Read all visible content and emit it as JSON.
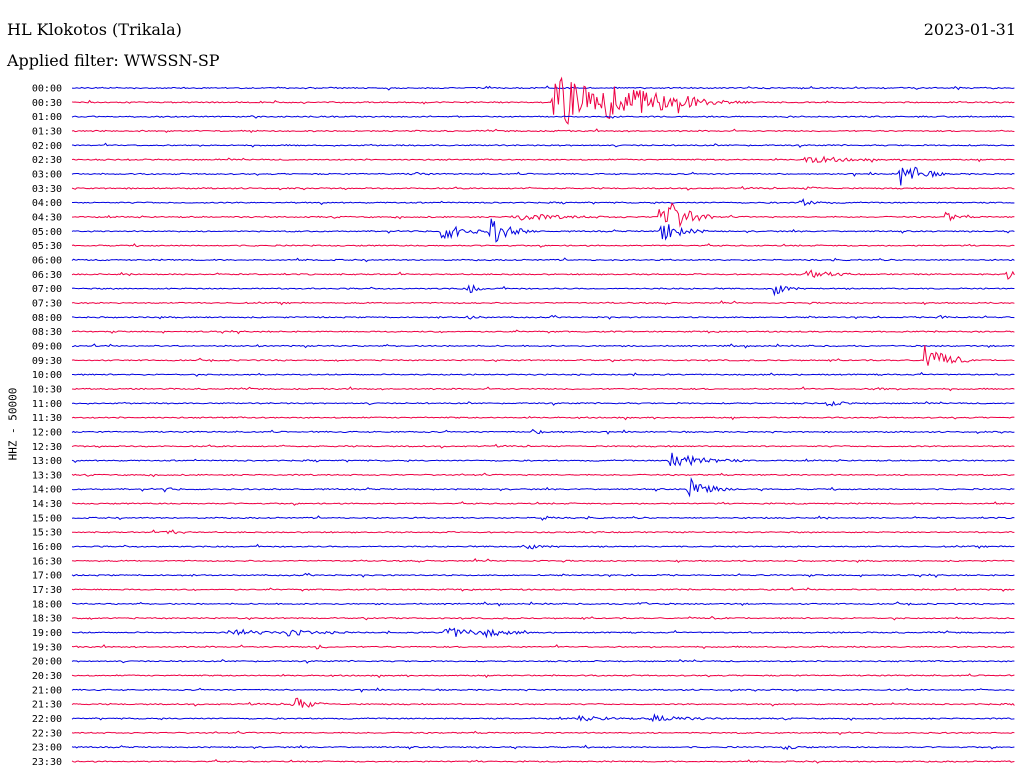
{
  "header": {
    "station": "HL Klokotos (Trikala)",
    "date": "2023-01-31",
    "filter": "Applied filter: WWSSN-SP"
  },
  "chart_data": {
    "type": "line",
    "title": "HL Klokotos (Trikala)",
    "subtitle": "Applied filter: WWSSN-SP",
    "date": "2023-01-31",
    "ylabel": "HHZ - 50000",
    "xlabel": "",
    "colors": {
      "even_trace": "#0000e0",
      "odd_trace": "#ee0044"
    },
    "trace_labels": [
      "00:00",
      "00:30",
      "01:00",
      "01:30",
      "02:00",
      "02:30",
      "03:00",
      "03:30",
      "04:00",
      "04:30",
      "05:00",
      "05:30",
      "06:00",
      "06:30",
      "07:00",
      "07:30",
      "08:00",
      "08:30",
      "09:00",
      "09:30",
      "10:00",
      "10:30",
      "11:00",
      "11:30",
      "12:00",
      "12:30",
      "13:00",
      "13:30",
      "14:00",
      "14:30",
      "15:00",
      "15:30",
      "16:00",
      "16:30",
      "17:00",
      "17:30",
      "18:00",
      "18:30",
      "19:00",
      "19:30",
      "20:00",
      "20:30",
      "21:00",
      "21:30",
      "22:00",
      "22:30",
      "23:00",
      "23:30"
    ],
    "trace_length_minutes": 30,
    "events": [
      {
        "trace": 1,
        "minute": 15.3,
        "amplitude": 30,
        "duration": 1.5
      },
      {
        "trace": 1,
        "minute": 17.0,
        "amplitude": 14,
        "duration": 1.5
      },
      {
        "trace": 1,
        "minute": 19.1,
        "amplitude": 8,
        "duration": 0.4
      },
      {
        "trace": 5,
        "minute": 23.3,
        "amplitude": 5,
        "duration": 0.8
      },
      {
        "trace": 6,
        "minute": 10.8,
        "amplitude": 3,
        "duration": 0.2
      },
      {
        "trace": 6,
        "minute": 26.3,
        "amplitude": 16,
        "duration": 0.5
      },
      {
        "trace": 7,
        "minute": 23.3,
        "amplitude": 2,
        "duration": 0.3
      },
      {
        "trace": 8,
        "minute": 23.1,
        "amplitude": 4,
        "duration": 0.4
      },
      {
        "trace": 9,
        "minute": 14.0,
        "amplitude": 4,
        "duration": 1.2
      },
      {
        "trace": 9,
        "minute": 18.7,
        "amplitude": 26,
        "duration": 0.6
      },
      {
        "trace": 9,
        "minute": 27.7,
        "amplitude": 6,
        "duration": 0.3
      },
      {
        "trace": 10,
        "minute": 11.7,
        "amplitude": 10,
        "duration": 0.6
      },
      {
        "trace": 10,
        "minute": 13.3,
        "amplitude": 14,
        "duration": 0.5
      },
      {
        "trace": 10,
        "minute": 18.7,
        "amplitude": 12,
        "duration": 0.5
      },
      {
        "trace": 13,
        "minute": 23.3,
        "amplitude": 6,
        "duration": 0.5
      },
      {
        "trace": 13,
        "minute": 29.7,
        "amplitude": 5,
        "duration": 0.6
      },
      {
        "trace": 14,
        "minute": 12.6,
        "amplitude": 5,
        "duration": 0.3
      },
      {
        "trace": 14,
        "minute": 22.3,
        "amplitude": 7,
        "duration": 0.3
      },
      {
        "trace": 16,
        "minute": 12.6,
        "amplitude": 3,
        "duration": 0.2
      },
      {
        "trace": 16,
        "minute": 27.5,
        "amplitude": 2,
        "duration": 0.3
      },
      {
        "trace": 19,
        "minute": 27.1,
        "amplitude": 18,
        "duration": 0.5
      },
      {
        "trace": 21,
        "minute": 25.5,
        "amplitude": 3,
        "duration": 0.2
      },
      {
        "trace": 22,
        "minute": 24.0,
        "amplitude": 4,
        "duration": 0.3
      },
      {
        "trace": 24,
        "minute": 14.6,
        "amplitude": 2,
        "duration": 0.6
      },
      {
        "trace": 26,
        "minute": 19.0,
        "amplitude": 9,
        "duration": 0.8
      },
      {
        "trace": 28,
        "minute": 2.9,
        "amplitude": 3,
        "duration": 0.2
      },
      {
        "trace": 28,
        "minute": 19.6,
        "amplitude": 12,
        "duration": 0.5
      },
      {
        "trace": 30,
        "minute": 14.9,
        "amplitude": 3,
        "duration": 0.2
      },
      {
        "trace": 31,
        "minute": 2.9,
        "amplitude": 5,
        "duration": 0.3
      },
      {
        "trace": 32,
        "minute": 14.3,
        "amplitude": 3,
        "duration": 0.4
      },
      {
        "trace": 36,
        "minute": 18.0,
        "amplitude": 3,
        "duration": 0.2
      },
      {
        "trace": 38,
        "minute": 5.0,
        "amplitude": 4,
        "duration": 0.8
      },
      {
        "trace": 38,
        "minute": 6.8,
        "amplitude": 3,
        "duration": 0.8
      },
      {
        "trace": 38,
        "minute": 11.8,
        "amplitude": 6,
        "duration": 0.9
      },
      {
        "trace": 38,
        "minute": 13.1,
        "amplitude": 3,
        "duration": 0.5
      },
      {
        "trace": 39,
        "minute": 7.7,
        "amplitude": 3,
        "duration": 0.2
      },
      {
        "trace": 43,
        "minute": 7.0,
        "amplitude": 10,
        "duration": 0.4
      },
      {
        "trace": 44,
        "minute": 16.1,
        "amplitude": 3,
        "duration": 0.7
      },
      {
        "trace": 44,
        "minute": 18.4,
        "amplitude": 4,
        "duration": 0.8
      },
      {
        "trace": 46,
        "minute": 22.6,
        "amplitude": 3,
        "duration": 0.3
      }
    ]
  }
}
